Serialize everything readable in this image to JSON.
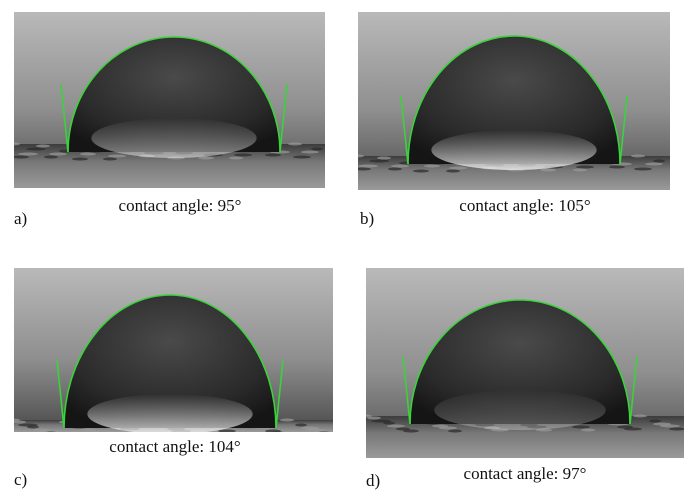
{
  "panels": [
    {
      "label": "a)",
      "caption": "contact angle: 95°"
    },
    {
      "label": "b)",
      "caption": "contact angle: 105°"
    },
    {
      "label": "c)",
      "caption": "contact angle: 104°"
    },
    {
      "label": "d)",
      "caption": "contact angle: 97°"
    }
  ]
}
